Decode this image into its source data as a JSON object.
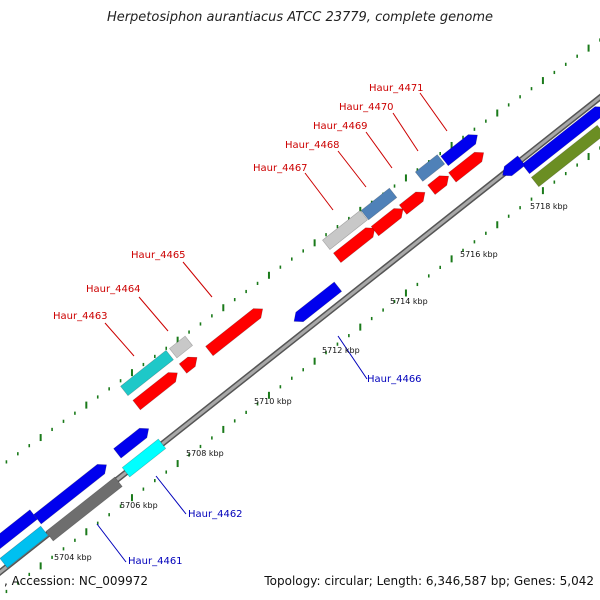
{
  "title": "Herpetosiphon aurantiacus ATCC 23779, complete genome",
  "footer": {
    "accession": ", Accession: NC_009972",
    "summary": "Topology: circular; Length: 6,346,587 bp; Genes: 5,042"
  },
  "scale_labels": [
    "5704 kbp",
    "5706 kbp",
    "5708 kbp",
    "5710 kbp",
    "5712 kbp",
    "5714 kbp",
    "5716 kbp",
    "5718 kbp"
  ],
  "colors": {
    "backbone": "#8c8c8c",
    "tick": "#1a7a1a",
    "label_red": "#cc0000",
    "label_blue": "#0000bb",
    "red": "#ff0000",
    "blue": "#0000ee",
    "steel": "#4f81b8",
    "grey": "#c8c8c8",
    "dark_grey": "#6e6e6e",
    "teal": "#1ec8c8",
    "cyan": "#00ffff",
    "deep_sky": "#00c0f0",
    "olive": "#6b8e23"
  },
  "gene_labels": [
    {
      "text": "Haur_4471",
      "color": "red"
    },
    {
      "text": "Haur_4470",
      "color": "red"
    },
    {
      "text": "Haur_4469",
      "color": "red"
    },
    {
      "text": "Haur_4468",
      "color": "red"
    },
    {
      "text": "Haur_4467",
      "color": "red"
    },
    {
      "text": "Haur_4465",
      "color": "red"
    },
    {
      "text": "Haur_4464",
      "color": "red"
    },
    {
      "text": "Haur_4463",
      "color": "red"
    },
    {
      "text": "Haur_4466",
      "color": "blue"
    },
    {
      "text": "Haur_4462",
      "color": "blue"
    },
    {
      "text": "Haur_4461",
      "color": "blue"
    }
  ]
}
